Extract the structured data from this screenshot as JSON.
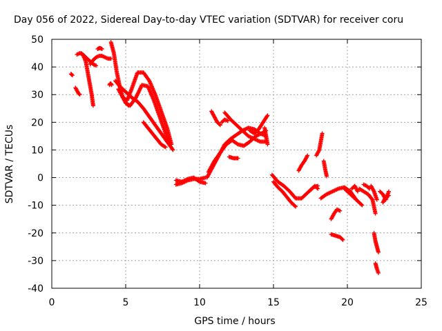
{
  "chart_data": {
    "type": "scatter",
    "title": "Day 056 of 2022, Sidereal Day-to-day VTEC variation (SDTVAR) for receiver coru",
    "xlabel": "GPS time / hours",
    "ylabel": "SDTVAR / TECUs",
    "xlim": [
      0,
      25
    ],
    "ylim": [
      -40,
      50
    ],
    "x_ticks": [
      0,
      5,
      10,
      15,
      20,
      25
    ],
    "y_ticks": [
      -40,
      -30,
      -20,
      -10,
      0,
      10,
      20,
      30,
      40,
      50
    ],
    "x_tick_labels": [
      "0",
      "5",
      "10",
      "15",
      "20",
      "25"
    ],
    "y_tick_labels": [
      "-40",
      "-30",
      "-20",
      "-10",
      "0",
      "10",
      "20",
      "30",
      "40",
      "50"
    ],
    "grid": true,
    "marker": "+",
    "color": "#ff0000",
    "series": [
      {
        "x": [
          1.3,
          1.35,
          1.4
        ],
        "y": [
          37.5,
          37.2,
          37.0
        ]
      },
      {
        "x": [
          1.6,
          1.7,
          1.8,
          1.9
        ],
        "y": [
          32.5,
          31.5,
          30.5,
          30.0
        ]
      },
      {
        "x": [
          1.7,
          1.9,
          2.1,
          2.3,
          2.5,
          2.7,
          2.8
        ],
        "y": [
          44.5,
          45.0,
          44.5,
          42.0,
          36.0,
          30.0,
          26.0
        ]
      },
      {
        "x": [
          2.0,
          2.2,
          2.4,
          2.6,
          2.8,
          3.0
        ],
        "y": [
          45.0,
          44.0,
          43.0,
          42.0,
          41.0,
          40.5
        ]
      },
      {
        "x": [
          2.6,
          2.8,
          3.0,
          3.2,
          3.4,
          3.6,
          3.8,
          4.0
        ],
        "y": [
          41.0,
          42.5,
          43.5,
          44.0,
          44.0,
          43.5,
          43.0,
          43.0
        ]
      },
      {
        "x": [
          3.1,
          3.2,
          3.3,
          3.4
        ],
        "y": [
          46.5,
          46.8,
          46.8,
          46.5
        ]
      },
      {
        "x": [
          3.9,
          3.95,
          4.0,
          4.05
        ],
        "y": [
          33.5,
          34.0,
          34.0,
          33.5
        ]
      },
      {
        "x": [
          4.0,
          4.2,
          4.4,
          4.6,
          4.8,
          5.0,
          5.2
        ],
        "y": [
          49.0,
          45.0,
          38.0,
          33.0,
          29.0,
          27.0,
          26.0
        ]
      },
      {
        "x": [
          4.3,
          4.6,
          5.0,
          5.4,
          5.8,
          6.2,
          6.6,
          7.0,
          7.4,
          7.8,
          8.2
        ],
        "y": [
          35.0,
          33.0,
          31.0,
          29.0,
          27.5,
          25.0,
          22.0,
          19.0,
          16.0,
          13.0,
          10.0
        ]
      },
      {
        "x": [
          4.5,
          4.8,
          5.1,
          5.4,
          5.8,
          6.2,
          6.6,
          7.0,
          7.4,
          7.8,
          8.1
        ],
        "y": [
          32.0,
          29.0,
          28.0,
          32.0,
          38.0,
          38.0,
          35.0,
          30.0,
          24.0,
          18.0,
          12.0
        ]
      },
      {
        "x": [
          5.0,
          5.3,
          5.7,
          6.1,
          6.5,
          6.9,
          7.3,
          7.7,
          8.0
        ],
        "y": [
          27.0,
          26.0,
          29.0,
          33.5,
          33.0,
          28.0,
          22.0,
          16.0,
          12.0
        ]
      },
      {
        "x": [
          6.2,
          6.5,
          6.8,
          7.1,
          7.4,
          7.7
        ],
        "y": [
          20.0,
          18.0,
          16.0,
          14.0,
          12.0,
          11.0
        ]
      },
      {
        "x": [
          8.4,
          8.8,
          9.2,
          9.6,
          10.0,
          10.4
        ],
        "y": [
          -2.5,
          -2.0,
          -1.0,
          -0.5,
          -0.5,
          0.0
        ]
      },
      {
        "x": [
          8.4,
          8.8,
          9.2,
          9.6,
          10.0,
          10.4
        ],
        "y": [
          -1.0,
          -1.5,
          -0.5,
          0.0,
          -1.5,
          -2.0
        ]
      },
      {
        "x": [
          10.5,
          10.9,
          11.3,
          11.7,
          12.1,
          12.5,
          12.9,
          13.3,
          13.7,
          14.1,
          14.5
        ],
        "y": [
          0.0,
          4.0,
          8.0,
          12.0,
          14.0,
          15.5,
          17.0,
          18.0,
          17.5,
          16.0,
          15.0
        ]
      },
      {
        "x": [
          10.6,
          11.0,
          11.4,
          11.8,
          12.2,
          12.6,
          13.0,
          13.4,
          13.8,
          14.2,
          14.5
        ],
        "y": [
          2.0,
          6.0,
          9.0,
          12.0,
          13.5,
          12.0,
          11.5,
          13.0,
          15.0,
          16.0,
          17.0
        ]
      },
      {
        "x": [
          10.8,
          11.0,
          11.2,
          11.4
        ],
        "y": [
          24.0,
          22.0,
          20.0,
          19.0
        ]
      },
      {
        "x": [
          11.5,
          11.7,
          11.9
        ],
        "y": [
          20.0,
          21.0,
          20.5
        ]
      },
      {
        "x": [
          11.7,
          12.1,
          12.5,
          12.9,
          13.3,
          13.7,
          14.1,
          14.5
        ],
        "y": [
          23.5,
          21.0,
          19.0,
          17.0,
          15.0,
          14.0,
          13.0,
          13.0
        ]
      },
      {
        "x": [
          12.0,
          12.3,
          12.6
        ],
        "y": [
          7.5,
          7.0,
          7.0
        ]
      },
      {
        "x": [
          13.4,
          13.7,
          14.0,
          14.3,
          14.6
        ],
        "y": [
          17.0,
          16.0,
          17.5,
          20.0,
          22.5
        ]
      },
      {
        "x": [
          14.4,
          14.5,
          14.6
        ],
        "y": [
          18.0,
          15.0,
          12.0
        ]
      },
      {
        "x": [
          14.9,
          15.3,
          15.7,
          16.1,
          16.5,
          16.9,
          17.3,
          17.7,
          18.0
        ],
        "y": [
          1.0,
          -1.5,
          -3.0,
          -5.0,
          -7.5,
          -7.5,
          -5.5,
          -3.5,
          -3.0
        ]
      },
      {
        "x": [
          15.0,
          15.3,
          15.6,
          15.9,
          16.2,
          16.5
        ],
        "y": [
          -1.5,
          -3.5,
          -5.0,
          -7.0,
          -9.0,
          -10.5
        ]
      },
      {
        "x": [
          16.7,
          16.9,
          17.1,
          17.3
        ],
        "y": [
          2.5,
          4.5,
          6.0,
          8.0
        ]
      },
      {
        "x": [
          17.4,
          17.6,
          17.8,
          18.0
        ],
        "y": [
          -5.0,
          -4.0,
          -3.0,
          -4.0
        ]
      },
      {
        "x": [
          17.9,
          18.1,
          18.2,
          18.3
        ],
        "y": [
          8.0,
          10.0,
          13.0,
          16.0
        ]
      },
      {
        "x": [
          18.4,
          18.5,
          18.6
        ],
        "y": [
          6.0,
          3.0,
          0.5
        ]
      },
      {
        "x": [
          18.2,
          18.6,
          19.0,
          19.4,
          19.8,
          20.2,
          20.6
        ],
        "y": [
          -7.5,
          -6.0,
          -5.0,
          -4.0,
          -3.5,
          -5.0,
          -8.0
        ]
      },
      {
        "x": [
          18.9,
          19.1,
          19.3,
          19.5
        ],
        "y": [
          -15.0,
          -13.0,
          -11.5,
          -12.0
        ]
      },
      {
        "x": [
          18.9,
          19.2,
          19.5,
          19.7
        ],
        "y": [
          -20.5,
          -21.0,
          -21.5,
          -22.5
        ]
      },
      {
        "x": [
          19.8,
          20.2,
          20.6,
          21.0
        ],
        "y": [
          -4.0,
          -6.0,
          -8.0,
          -10.0
        ]
      },
      {
        "x": [
          20.3,
          20.5,
          20.7
        ],
        "y": [
          -4.0,
          -3.0,
          -5.0
        ]
      },
      {
        "x": [
          20.8,
          21.1,
          21.4,
          21.7,
          21.9
        ],
        "y": [
          -4.0,
          -5.0,
          -6.0,
          -8.0,
          -13.0
        ]
      },
      {
        "x": [
          21.1,
          21.3,
          21.5
        ],
        "y": [
          -2.5,
          -3.0,
          -4.0
        ]
      },
      {
        "x": [
          21.6,
          21.8,
          22.0
        ],
        "y": [
          -3.0,
          -5.0,
          -8.0
        ]
      },
      {
        "x": [
          21.8,
          21.9,
          22.0,
          22.1
        ],
        "y": [
          -20.0,
          -23.0,
          -25.0,
          -27.0
        ]
      },
      {
        "x": [
          21.9,
          22.0,
          22.1
        ],
        "y": [
          -31.0,
          -33.0,
          -34.5
        ]
      },
      {
        "x": [
          22.2,
          22.4,
          22.6,
          22.8
        ],
        "y": [
          -5.0,
          -6.0,
          -8.0,
          -5.0
        ]
      },
      {
        "x": [
          22.4,
          22.6,
          22.8
        ],
        "y": [
          -9.0,
          -7.0,
          -6.5
        ]
      }
    ]
  }
}
